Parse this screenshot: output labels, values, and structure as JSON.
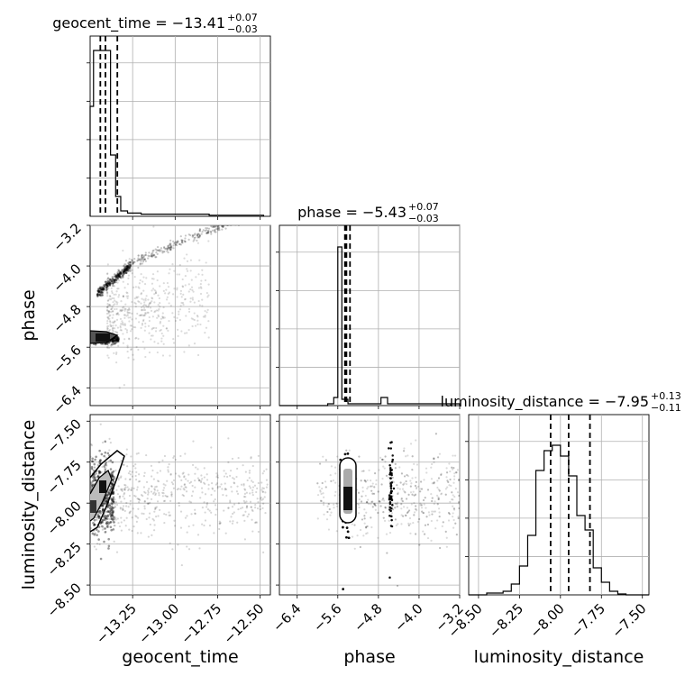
{
  "figure": {
    "titles": {
      "geocent_time": {
        "text": "geocent_time = −13.41",
        "sup": "+0.07",
        "sub": "−0.03"
      },
      "phase": {
        "text": "phase = −5.43",
        "sup": "+0.07",
        "sub": "−0.03"
      },
      "luminosity_distance": {
        "text": "luminosity_distance = −7.95",
        "sup": "+0.13",
        "sub": "−0.11"
      }
    },
    "xlabels": {
      "geocent_time": "geocent_time",
      "phase": "phase",
      "luminosity_distance": "luminosity_distance"
    },
    "ylabels": {
      "phase": "phase",
      "luminosity_distance": "luminosity_distance"
    }
  },
  "chart_data": {
    "type": "corner",
    "parameters": [
      "geocent_time",
      "phase",
      "luminosity_distance"
    ],
    "ranges": {
      "geocent_time": [
        -13.5,
        -12.44
      ],
      "phase": [
        -6.75,
        -3.2
      ],
      "luminosity_distance": [
        -8.56,
        -7.46
      ]
    },
    "ticks": {
      "geocent_time": {
        "values": [
          -13.25,
          -13.0,
          -12.75,
          -12.5
        ],
        "labels": [
          "−13.25",
          "−13.00",
          "−12.75",
          "−12.50"
        ]
      },
      "phase": {
        "values": [
          -6.4,
          -5.6,
          -4.8,
          -4.0,
          -3.2
        ],
        "labels": [
          "−6.4",
          "−5.6",
          "−4.8",
          "−4.0",
          "−3.2"
        ]
      },
      "luminosity_distance": {
        "values": [
          -8.5,
          -8.25,
          -8.0,
          -7.75,
          -7.5
        ],
        "labels": [
          "−8.50",
          "−8.25",
          "−8.00",
          "−7.75",
          "−7.50"
        ]
      }
    },
    "histograms": {
      "geocent_time": {
        "edges": [
          -13.5,
          -13.48,
          -13.46,
          -13.44,
          -13.42,
          -13.4,
          -13.38,
          -13.35,
          -13.32,
          -13.28,
          -13.2,
          -13.1,
          -13.0,
          -12.9,
          -12.8,
          -12.7,
          -12.6,
          -12.48
        ],
        "heights": [
          0.61,
          0.92,
          0.92,
          0.92,
          0.92,
          0.92,
          0.34,
          0.11,
          0.03,
          0.018,
          0.012,
          0.012,
          0.012,
          0.012,
          0.006,
          0.006,
          0.006
        ]
      },
      "phase": {
        "edges": [
          -6.75,
          -6.5,
          -6.25,
          -5.8,
          -5.68,
          -5.6,
          -5.52,
          -5.4,
          -5.2,
          -4.9,
          -4.75,
          -4.62,
          -4.4,
          -4.0,
          -3.2
        ],
        "heights": [
          0,
          0,
          0,
          0.01,
          0.045,
          0.88,
          0.035,
          0.01,
          0.01,
          0.01,
          0.045,
          0.01,
          0.01,
          0.01
        ]
      },
      "luminosity_distance": {
        "edges": [
          -8.56,
          -8.5,
          -8.45,
          -8.4,
          -8.35,
          -8.3,
          -8.25,
          -8.2,
          -8.15,
          -8.1,
          -8.05,
          -8.0,
          -7.95,
          -7.9,
          -7.85,
          -7.8,
          -7.75,
          -7.7,
          -7.65,
          -7.6,
          -7.55,
          -7.5,
          -7.46
        ],
        "heights": [
          0,
          0,
          0.01,
          0.01,
          0.02,
          0.06,
          0.16,
          0.33,
          0.69,
          0.8,
          0.83,
          0.77,
          0.66,
          0.44,
          0.36,
          0.15,
          0.07,
          0.02,
          0.005,
          0,
          0,
          0
        ]
      }
    },
    "quantiles": {
      "geocent_time": [
        -13.44,
        -13.41,
        -13.34
      ],
      "phase": [
        -5.46,
        -5.43,
        -5.36
      ],
      "luminosity_distance": [
        -8.06,
        -7.95,
        -7.82
      ]
    }
  }
}
